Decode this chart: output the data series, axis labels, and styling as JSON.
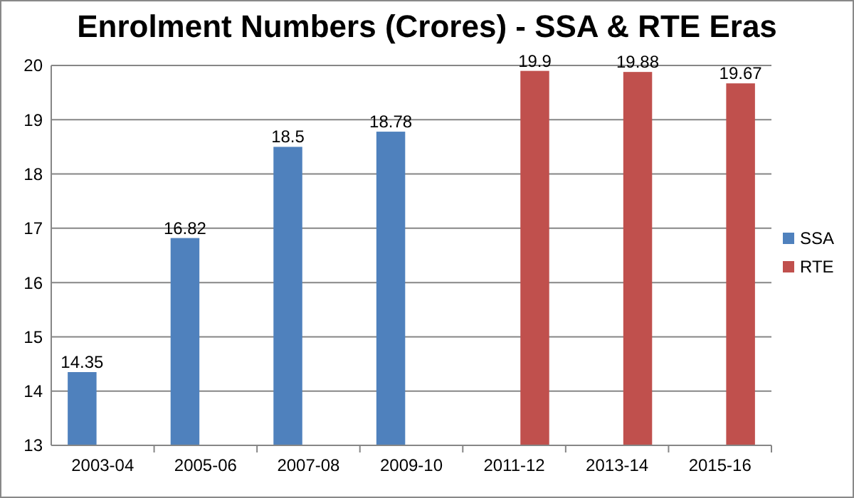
{
  "chart_data": {
    "type": "bar",
    "title": "Enrolment Numbers (Crores) - SSA & RTE Eras",
    "categories": [
      "2003-04",
      "2005-06",
      "2007-08",
      "2009-10",
      "2011-12",
      "2013-14",
      "2015-16"
    ],
    "series": [
      {
        "name": "SSA",
        "color": "#4f81bd",
        "values": [
          14.35,
          16.82,
          18.5,
          18.78,
          null,
          null,
          null
        ]
      },
      {
        "name": "RTE",
        "color": "#c0504d",
        "values": [
          null,
          null,
          null,
          null,
          19.9,
          19.88,
          19.67
        ]
      }
    ],
    "ylim": [
      13,
      20
    ],
    "yticks": [
      13,
      14,
      15,
      16,
      17,
      18,
      19,
      20
    ],
    "grid": "y",
    "legend": "right",
    "data_labels": true
  }
}
